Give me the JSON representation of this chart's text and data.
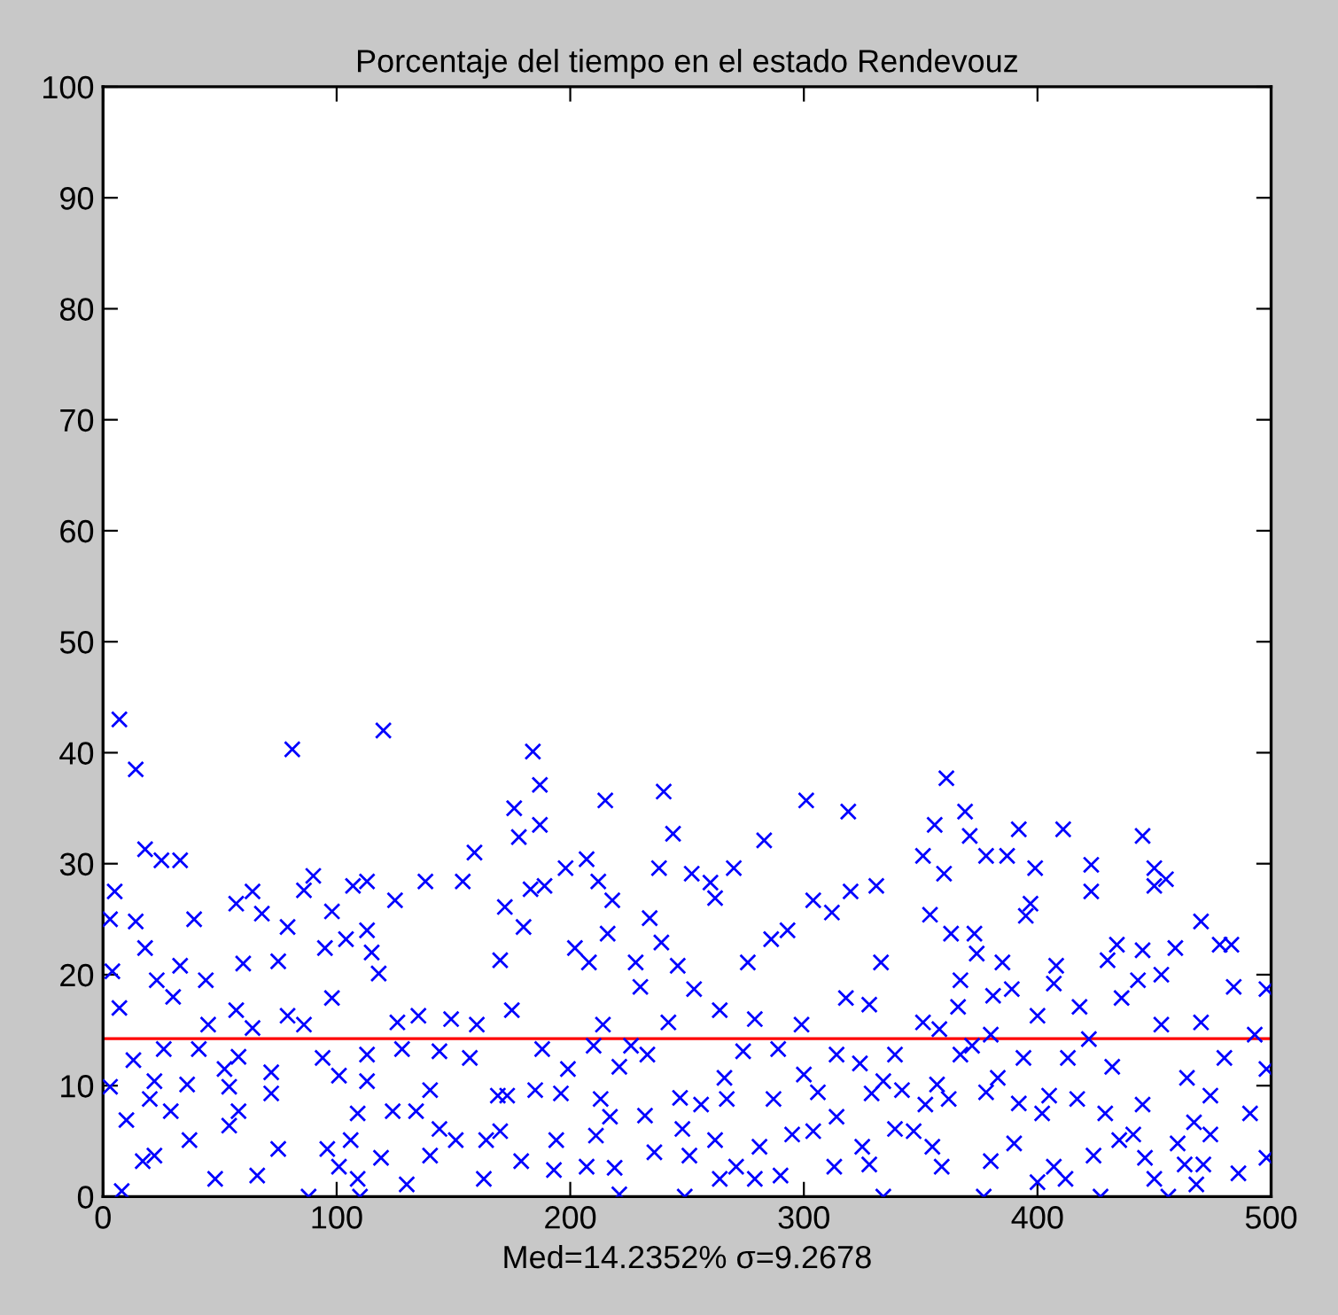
{
  "chart_data": {
    "type": "scatter",
    "title": "Porcentaje del tiempo en el estado Rendevouz",
    "xlabel": "Med=14.2352% σ=9.2678",
    "x": [
      7,
      14,
      81,
      120,
      18,
      25,
      33,
      5,
      3,
      14,
      18,
      4,
      23,
      33,
      44,
      30,
      7,
      57,
      64,
      68,
      39,
      60,
      75,
      79,
      90,
      86,
      98,
      95,
      104,
      113,
      115,
      118,
      107,
      113,
      125,
      138,
      154,
      159,
      98,
      45,
      57,
      64,
      79,
      86,
      126,
      135,
      149,
      160,
      13,
      26,
      3,
      22,
      36,
      52,
      58,
      72,
      72,
      41,
      54,
      94,
      101,
      113,
      113,
      128,
      144,
      157,
      169,
      140,
      134,
      144,
      151,
      164,
      20,
      29,
      10,
      58,
      54,
      109,
      124,
      37,
      17,
      22,
      48,
      66,
      75,
      96,
      106,
      101,
      109,
      119,
      130,
      140,
      163,
      8,
      88,
      110,
      184,
      187,
      176,
      178,
      187,
      215,
      240,
      244,
      301,
      319,
      283,
      198,
      207,
      212,
      218,
      238,
      252,
      260,
      270,
      262,
      183,
      189,
      172,
      180,
      170,
      202,
      208,
      216,
      234,
      239,
      228,
      230,
      246,
      253,
      264,
      276,
      286,
      293,
      304,
      312,
      320,
      331,
      333,
      318,
      328,
      175,
      214,
      242,
      279,
      299,
      188,
      199,
      210,
      226,
      221,
      233,
      266,
      274,
      289,
      300,
      314,
      324,
      334,
      173,
      185,
      196,
      213,
      217,
      232,
      247,
      256,
      267,
      287,
      306,
      314,
      329,
      248,
      262,
      170,
      194,
      211,
      281,
      295,
      304,
      325,
      179,
      193,
      207,
      219,
      236,
      251,
      264,
      271,
      279,
      290,
      313,
      328,
      221,
      249,
      334,
      361,
      369,
      356,
      371,
      351,
      360,
      378,
      387,
      392,
      399,
      411,
      423,
      423,
      445,
      450,
      455,
      450,
      354,
      363,
      373,
      374,
      395,
      397,
      385,
      367,
      366,
      389,
      381,
      408,
      407,
      400,
      418,
      430,
      434,
      445,
      436,
      443,
      453,
      459,
      470,
      478,
      483,
      484,
      498,
      351,
      358,
      380,
      372,
      367,
      339,
      394,
      413,
      422,
      453,
      470,
      480,
      493,
      383,
      357,
      432,
      464,
      474,
      498,
      378,
      405,
      392,
      417,
      429,
      445,
      362,
      352,
      342,
      402,
      491,
      339,
      347,
      355,
      390,
      380,
      359,
      424,
      435,
      441,
      460,
      467,
      474,
      446,
      463,
      471,
      400,
      407,
      412,
      450,
      468,
      486,
      498,
      377,
      427,
      456
    ],
    "values": [
      43,
      38.5,
      40.3,
      42,
      31.3,
      30.3,
      30.3,
      27.5,
      25,
      24.8,
      22.4,
      20.3,
      19.5,
      20.8,
      19.5,
      18,
      17,
      26.4,
      27.5,
      25.5,
      25,
      21,
      21.2,
      24.3,
      28.9,
      27.6,
      25.7,
      22.4,
      23.2,
      24,
      22,
      20.1,
      28,
      28.4,
      26.7,
      28.4,
      28.4,
      31,
      17.9,
      15.5,
      16.8,
      15.2,
      16.3,
      15.5,
      15.7,
      16.3,
      16,
      15.5,
      12.3,
      13.3,
      9.9,
      10.4,
      10.1,
      11.5,
      12.6,
      11.2,
      9.3,
      13.3,
      9.9,
      12.5,
      10.9,
      10.4,
      12.8,
      13.3,
      13.1,
      12.5,
      9.1,
      9.6,
      7.7,
      6.1,
      5.1,
      5.1,
      8.8,
      7.7,
      6.9,
      7.7,
      6.4,
      7.5,
      7.7,
      5.1,
      3.2,
      3.7,
      1.6,
      1.9,
      4.3,
      4.3,
      5.1,
      2.7,
      1.6,
      3.5,
      1.1,
      3.7,
      1.6,
      0.5,
      0,
      0,
      40.1,
      37.1,
      35,
      32.4,
      33.5,
      35.7,
      36.5,
      32.7,
      35.7,
      34.7,
      32.1,
      29.6,
      30.4,
      28.4,
      26.7,
      29.6,
      29.1,
      28.3,
      29.6,
      26.9,
      27.7,
      28,
      26.1,
      24.3,
      21.3,
      22.4,
      21.1,
      23.7,
      25.1,
      22.9,
      21.1,
      18.9,
      20.8,
      18.7,
      16.8,
      21.1,
      23.2,
      24,
      26.7,
      25.6,
      27.5,
      28,
      21.1,
      17.9,
      17.3,
      16.8,
      15.5,
      15.7,
      16,
      15.5,
      13.3,
      11.5,
      13.6,
      13.6,
      11.7,
      12.8,
      10.7,
      13.1,
      13.3,
      11,
      12.8,
      12,
      10.4,
      9.1,
      9.6,
      9.3,
      8.8,
      7.2,
      7.3,
      8.9,
      8.3,
      8.8,
      8.8,
      9.4,
      7.2,
      9.3,
      6.1,
      5.1,
      5.9,
      5.1,
      5.5,
      4.5,
      5.6,
      5.9,
      4.5,
      3.2,
      2.4,
      2.7,
      2.6,
      4,
      3.7,
      1.6,
      2.7,
      1.6,
      1.9,
      2.7,
      2.9,
      0.2,
      0,
      0,
      37.7,
      34.7,
      33.5,
      32.5,
      30.7,
      29.1,
      30.7,
      30.7,
      33.1,
      29.6,
      33.1,
      29.9,
      27.5,
      32.5,
      29.6,
      28.6,
      28,
      25.4,
      23.7,
      23.7,
      21.9,
      25.3,
      26.4,
      21.1,
      19.5,
      17.1,
      18.7,
      18.1,
      20.8,
      19.2,
      16.3,
      17.1,
      21.3,
      22.7,
      22.2,
      17.9,
      19.5,
      20,
      22.4,
      24.8,
      22.7,
      22.7,
      18.9,
      18.7,
      15.7,
      15.1,
      14.6,
      13.6,
      12.8,
      12.8,
      12.5,
      12.5,
      14.2,
      15.5,
      15.7,
      12.5,
      14.6,
      10.7,
      10.1,
      11.7,
      10.7,
      9.1,
      11.5,
      9.4,
      9.1,
      8.4,
      8.8,
      7.5,
      8.3,
      8.8,
      8.3,
      9.6,
      7.5,
      7.5,
      6.1,
      5.9,
      4.5,
      4.8,
      3.2,
      2.7,
      3.7,
      5.1,
      5.6,
      4.8,
      6.7,
      5.6,
      3.5,
      2.9,
      2.9,
      1.3,
      2.7,
      1.6,
      1.6,
      1.1,
      2.1,
      3.5,
      0,
      0,
      0
    ],
    "color": "#0000ff",
    "marker": "cross",
    "xlim": [
      0,
      500
    ],
    "xticks": [
      0,
      100,
      200,
      300,
      400,
      500
    ],
    "ylim": [
      0,
      100
    ],
    "yticks": [
      0,
      10,
      20,
      30,
      40,
      50,
      60,
      70,
      80,
      90,
      100
    ],
    "ref_lines": [
      {
        "axis": "y",
        "value": 14.2352,
        "color": "#ff0000"
      }
    ],
    "grid": false,
    "legend": false
  }
}
